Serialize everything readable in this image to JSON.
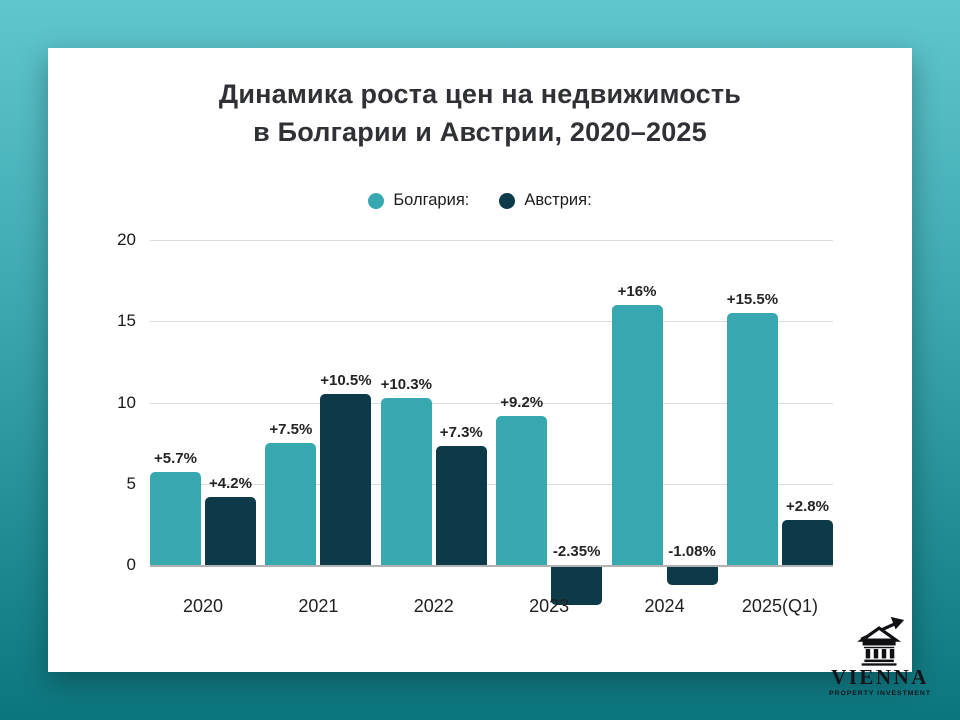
{
  "background": {
    "gradient_top": "#60c6cd",
    "gradient_bottom": "#0c757d"
  },
  "card": {
    "title_line1": "Динамика роста цен на недвижимость",
    "title_line2": "в Болгарии и Австрии, 2020–2025"
  },
  "legend": {
    "items": [
      {
        "key": "bulgaria",
        "label": "Болгария:",
        "color": "#38a8b0"
      },
      {
        "key": "austria",
        "label": "Австрия:",
        "color": "#0d3a49"
      }
    ]
  },
  "chart_data": {
    "type": "bar",
    "title": "Динамика роста цен на недвижимость в Болгарии и Австрии, 2020–2025",
    "categories": [
      "2020",
      "2021",
      "2022",
      "2023",
      "2024",
      "2025(Q1)"
    ],
    "series": [
      {
        "name": "Болгария",
        "key": "bulgaria",
        "color": "#38a8b0",
        "values": [
          5.7,
          7.5,
          10.3,
          9.2,
          16,
          15.5
        ],
        "labels": [
          "+5.7%",
          "+7.5%",
          "+10.3%",
          "+9.2%",
          "+16%",
          "+15.5%"
        ]
      },
      {
        "name": "Австрия",
        "key": "austria",
        "color": "#0d3a49",
        "values": [
          4.2,
          10.5,
          7.3,
          -2.35,
          -1.08,
          2.8
        ],
        "labels": [
          "+4.2%",
          "+10.5%",
          "+7.3%",
          "-2.35%",
          "-1.08%",
          "+2.8%"
        ]
      }
    ],
    "xlabel": "",
    "ylabel": "",
    "yticks": [
      0,
      5,
      10,
      15,
      20
    ],
    "ylim": [
      -2.5,
      20
    ],
    "grid": true,
    "legend_position": "top-center"
  },
  "logo": {
    "brand": "VIENNA",
    "tagline": "PROPERTY INVESTMENT",
    "icon": "building-with-growth-arrow"
  }
}
